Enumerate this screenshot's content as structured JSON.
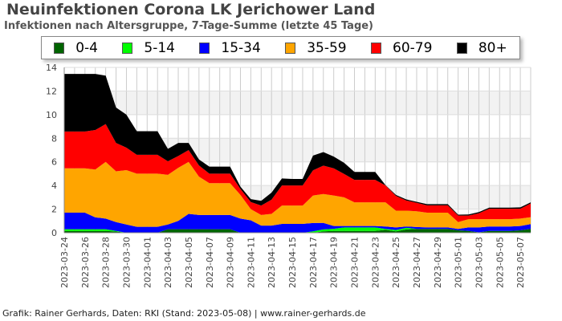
{
  "title": "Neuinfektionen Corona LK Jerichower Land",
  "subtitle": "Infektionen nach Altersgruppe, 7-Tage-Summe (letzte 45 Tage)",
  "footer": "Grafik: Rainer Gerhards, Daten: RKI (Stand: 2023-05-08) | www.rainer-gerhards.de",
  "chart_data": {
    "type": "area",
    "stacked": true,
    "title": "Neuinfektionen Corona LK Jerichower Land",
    "subtitle": "Infektionen nach Altersgruppe, 7-Tage-Summe (letzte 45 Tage)",
    "xlabel": "",
    "ylabel": "",
    "ylim": [
      0,
      14
    ],
    "yticks": [
      0,
      2,
      4,
      6,
      8,
      10,
      12,
      14
    ],
    "x_start": "2023-03-24",
    "x_tick_labels": [
      "2023-03-24",
      "2023-03-26",
      "2023-03-28",
      "2023-03-30",
      "2023-04-01",
      "2023-04-03",
      "2023-04-05",
      "2023-04-07",
      "2023-04-09",
      "2023-04-11",
      "2023-04-13",
      "2023-04-15",
      "2023-04-17",
      "2023-04-19",
      "2023-04-21",
      "2023-04-23",
      "2023-04-25",
      "2023-04-27",
      "2023-04-29",
      "2023-05-01",
      "2023-05-03",
      "2023-05-05",
      "2023-05-07"
    ],
    "grid": true,
    "legend_position": "top",
    "series": [
      {
        "name": "0-4",
        "color": "#006400",
        "values": [
          0.15,
          0.15,
          0.15,
          0.15,
          0.15,
          0.1,
          0,
          0,
          0,
          0,
          0.3,
          0.3,
          0.3,
          0.3,
          0.3,
          0.3,
          0.3,
          0,
          0,
          0,
          0,
          0,
          0,
          0,
          0,
          0.12,
          0.15,
          0.15,
          0.15,
          0.15,
          0.15,
          0.25,
          0.12,
          0.28,
          0.32,
          0.32,
          0.32,
          0.32,
          0.2,
          0.15,
          0.03,
          0.15,
          0.15,
          0.15,
          0.2,
          0.32
        ]
      },
      {
        "name": "5-14",
        "color": "#00ff00",
        "values": [
          0.15,
          0.15,
          0.15,
          0.15,
          0.15,
          0.05,
          0,
          0,
          0,
          0,
          0,
          0,
          0,
          0,
          0,
          0,
          0,
          0,
          0,
          0,
          0,
          0,
          0,
          0,
          0.12,
          0.16,
          0.18,
          0.3,
          0.3,
          0.3,
          0.3,
          0.07,
          0.11,
          0.14,
          0,
          0,
          0,
          0,
          0,
          0,
          0,
          0,
          0,
          0,
          0,
          0
        ]
      },
      {
        "name": "15-34",
        "color": "#0000ff",
        "values": [
          1.4,
          1.4,
          1.4,
          1.0,
          0.9,
          0.75,
          0.7,
          0.5,
          0.5,
          0.5,
          0.4,
          0.7,
          1.3,
          1.2,
          1.2,
          1.2,
          1.2,
          1.2,
          1.05,
          0.6,
          0.6,
          0.75,
          0.75,
          0.75,
          0.7,
          0.55,
          0.24,
          0.12,
          0.12,
          0.12,
          0.12,
          0.21,
          0.22,
          0.11,
          0.16,
          0.13,
          0.13,
          0.13,
          0.12,
          0.3,
          0.42,
          0.38,
          0.38,
          0.38,
          0.37,
          0.41
        ]
      },
      {
        "name": "35-59",
        "color": "#ffa500",
        "values": [
          3.75,
          3.75,
          3.75,
          4.05,
          4.8,
          4.3,
          4.6,
          4.5,
          4.5,
          4.5,
          4.2,
          4.5,
          4.4,
          3.25,
          2.7,
          2.7,
          2.7,
          2.0,
          0.95,
          0.9,
          1.0,
          1.55,
          1.55,
          1.55,
          2.33,
          2.45,
          2.58,
          2.43,
          2.0,
          2.0,
          2.0,
          2.04,
          1.42,
          1.34,
          1.34,
          1.25,
          1.25,
          1.25,
          0.58,
          0.7,
          0.7,
          0.62,
          0.62,
          0.62,
          0.63,
          0.59
        ]
      },
      {
        "name": "60-79",
        "color": "#ff0000",
        "values": [
          3.12,
          3.12,
          3.12,
          3.35,
          3.2,
          2.4,
          1.9,
          1.6,
          1.6,
          1.6,
          1.15,
          1.0,
          1.0,
          0.95,
          0.8,
          0.8,
          0.8,
          0.5,
          0.6,
          0.8,
          1.2,
          1.7,
          1.7,
          1.7,
          2.13,
          2.4,
          2.3,
          1.98,
          1.91,
          1.91,
          1.91,
          1.43,
          1.25,
          0.86,
          0.71,
          0.62,
          0.62,
          0.62,
          0.55,
          0.3,
          0.5,
          0.88,
          0.88,
          0.88,
          0.83,
          1.16
        ]
      },
      {
        "name": "80+",
        "color": "#000000",
        "values": [
          4.88,
          4.88,
          4.88,
          4.75,
          4.1,
          3.0,
          2.8,
          2.0,
          2.0,
          2.0,
          1.05,
          1.1,
          0.6,
          0.5,
          0.6,
          0.6,
          0.6,
          0.2,
          0.25,
          0.4,
          0.6,
          0.6,
          0.55,
          0.55,
          1.25,
          1.15,
          1.0,
          0.94,
          0.67,
          0.67,
          0.67,
          0.03,
          0.08,
          0.09,
          0.09,
          0.1,
          0.1,
          0.1,
          0.08,
          0.1,
          0.1,
          0.09,
          0.09,
          0.09,
          0.12,
          0.09
        ]
      }
    ]
  }
}
